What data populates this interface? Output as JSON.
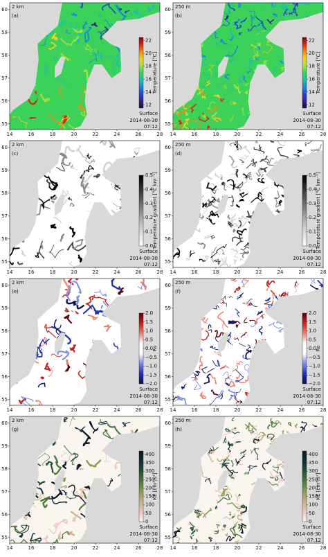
{
  "xlim": [
    14,
    28
  ],
  "xticks": [
    14,
    16,
    18,
    20,
    22,
    24,
    26,
    28
  ],
  "ylim": [
    54.75,
    60.3
  ],
  "yticks": [
    55,
    56,
    57,
    58,
    59,
    60
  ],
  "annotation": {
    "depth": "Surface",
    "date": "2014-08-30",
    "time": "07:12"
  },
  "rows": [
    {
      "colorbar_label": "Temperature [°C]",
      "clim": [
        11.5,
        22.5
      ],
      "cticks": [
        12,
        14,
        16,
        18,
        20,
        22
      ],
      "cmap": [
        "#1a0b3a",
        "#3b1f8c",
        "#2447c8",
        "#1a8ad8",
        "#20c0a8",
        "#3cd25a",
        "#a8e03a",
        "#f4d020",
        "#f08a18",
        "#d42a14",
        "#7a0a0a"
      ],
      "panels": [
        {
          "label": "(a)",
          "resolution": "2 km"
        },
        {
          "label": "(b)",
          "resolution": "250 m"
        }
      ]
    },
    {
      "colorbar_label": "Temperature gradient [°C km⁻¹]",
      "clim": [
        0,
        0.5
      ],
      "cticks": [
        {
          "value": 0,
          "label": "0.0"
        },
        0.1,
        0.2,
        0.3,
        0.4,
        0.5
      ],
      "cmap": [
        "#ffffff",
        "#d0d0d0",
        "#8a8a8a",
        "#404040",
        "#000000"
      ],
      "panels": [
        {
          "label": "(c)",
          "resolution": "2 km"
        },
        {
          "label": "(d)",
          "resolution": "250 m"
        }
      ]
    },
    {
      "colorbar_label": "Ro",
      "clim": [
        -2,
        2
      ],
      "cticks": [
        {
          "value": -2,
          "label": "−2.0"
        },
        {
          "value": -1.5,
          "label": "−1.5"
        },
        {
          "value": -1,
          "label": "−1.0"
        },
        {
          "value": -0.5,
          "label": "−0.5"
        },
        {
          "value": 0,
          "label": "0.0"
        },
        0.5,
        {
          "value": 1,
          "label": "1.0"
        },
        1.5,
        {
          "value": 2,
          "label": "2.0"
        }
      ],
      "cmap": [
        "#08104a",
        "#2030b0",
        "#7a8ce0",
        "#ffffff",
        "#ffffff",
        "#ec8070",
        "#c81e1e",
        "#5a0008"
      ],
      "panels": [
        {
          "label": "(e)",
          "resolution": "2 km"
        },
        {
          "label": "(f)",
          "resolution": "250 m"
        }
      ]
    },
    {
      "colorbar_label": "KE [cm²/s²]",
      "clim": [
        0,
        420
      ],
      "cticks": [
        0,
        50,
        100,
        150,
        200,
        250,
        300,
        350,
        400
      ],
      "cmap": [
        "#fbf5f0",
        "#ecc8bc",
        "#c8ae86",
        "#8c9a50",
        "#4a7a3c",
        "#1d5236",
        "#10303a",
        "#0a1828"
      ],
      "panels": [
        {
          "label": "(g)",
          "resolution": "2 km"
        },
        {
          "label": "(h)",
          "resolution": "250 m"
        }
      ]
    }
  ]
}
